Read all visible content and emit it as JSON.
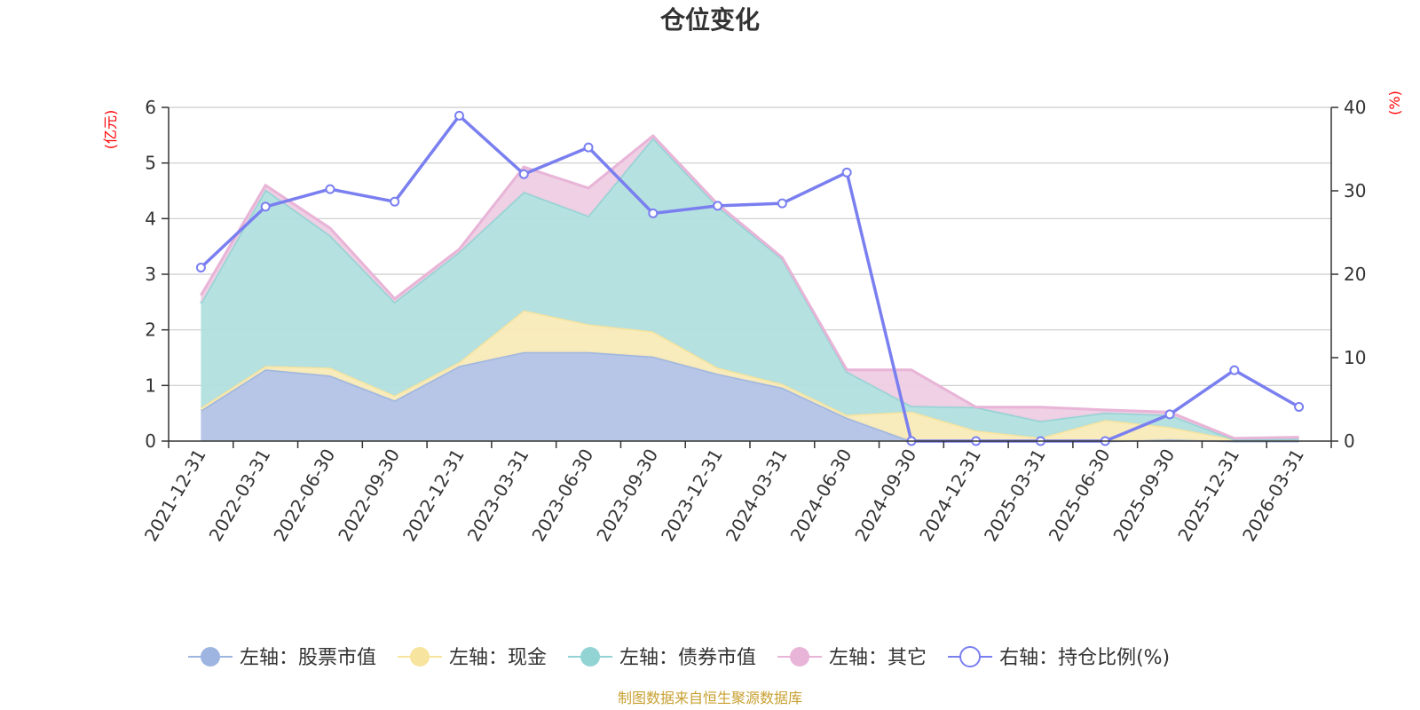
{
  "chart_data": {
    "type": "area",
    "title": "仓位变化",
    "left_axis_unit": "(亿元)",
    "right_axis_unit": "(%)",
    "ylim_left": [
      0,
      6
    ],
    "yticks_left": [
      "0",
      "1",
      "2",
      "3",
      "4",
      "5",
      "6"
    ],
    "ylim_right": [
      0,
      40
    ],
    "yticks_right": [
      "0",
      "10",
      "20",
      "30",
      "40"
    ],
    "grid": true,
    "legend_position": "bottom",
    "categories": [
      "2021-12-31",
      "2022-03-31",
      "2022-06-30",
      "2022-09-30",
      "2022-12-31",
      "2023-03-31",
      "2023-06-30",
      "2023-09-30",
      "2023-12-31",
      "2024-03-31",
      "2024-06-30",
      "2024-09-30",
      "2024-12-31",
      "2025-03-31",
      "2025-06-30",
      "2025-09-30",
      "2025-12-31",
      "2026-03-31"
    ],
    "stacked_series": [
      {
        "name": "左轴：股票市值",
        "color": "#9db5e0",
        "fill": "#b3c3e6",
        "values": [
          0.55,
          1.29,
          1.18,
          0.73,
          1.35,
          1.6,
          1.6,
          1.52,
          1.21,
          0.96,
          0.42,
          0.0,
          0.0,
          0.0,
          0.0,
          0.03,
          0.0,
          0.0
        ]
      },
      {
        "name": "左轴：现金",
        "color": "#f7e49e",
        "fill": "#f8eab8",
        "values": [
          0.05,
          0.06,
          0.14,
          0.09,
          0.07,
          0.75,
          0.5,
          0.45,
          0.11,
          0.07,
          0.05,
          0.53,
          0.19,
          0.06,
          0.38,
          0.22,
          0.03,
          0.04
        ]
      },
      {
        "name": "左轴：债券市值",
        "color": "#92d3d4",
        "fill": "#b2dfdf",
        "values": [
          1.88,
          3.17,
          2.38,
          1.68,
          1.98,
          2.13,
          1.95,
          3.48,
          2.9,
          2.25,
          0.78,
          0.1,
          0.42,
          0.3,
          0.13,
          0.22,
          0.0,
          0.0
        ]
      },
      {
        "name": "左轴：其它",
        "color": "#e8b4d7",
        "fill": "#eecde3",
        "values": [
          0.14,
          0.08,
          0.13,
          0.06,
          0.05,
          0.45,
          0.5,
          0.04,
          0.04,
          0.02,
          0.03,
          0.65,
          0.0,
          0.25,
          0.05,
          0.05,
          0.02,
          0.03
        ]
      }
    ],
    "line_series": {
      "name": "右轴：持仓比例(%)",
      "color": "#7a7ff0",
      "values": [
        20.8,
        28.1,
        30.2,
        28.7,
        39.0,
        32.0,
        35.2,
        27.3,
        28.2,
        28.5,
        32.2,
        0.0,
        0.0,
        0.0,
        0.0,
        3.2,
        8.5,
        4.1
      ]
    }
  },
  "footer": "制图数据来自恒生聚源数据库"
}
